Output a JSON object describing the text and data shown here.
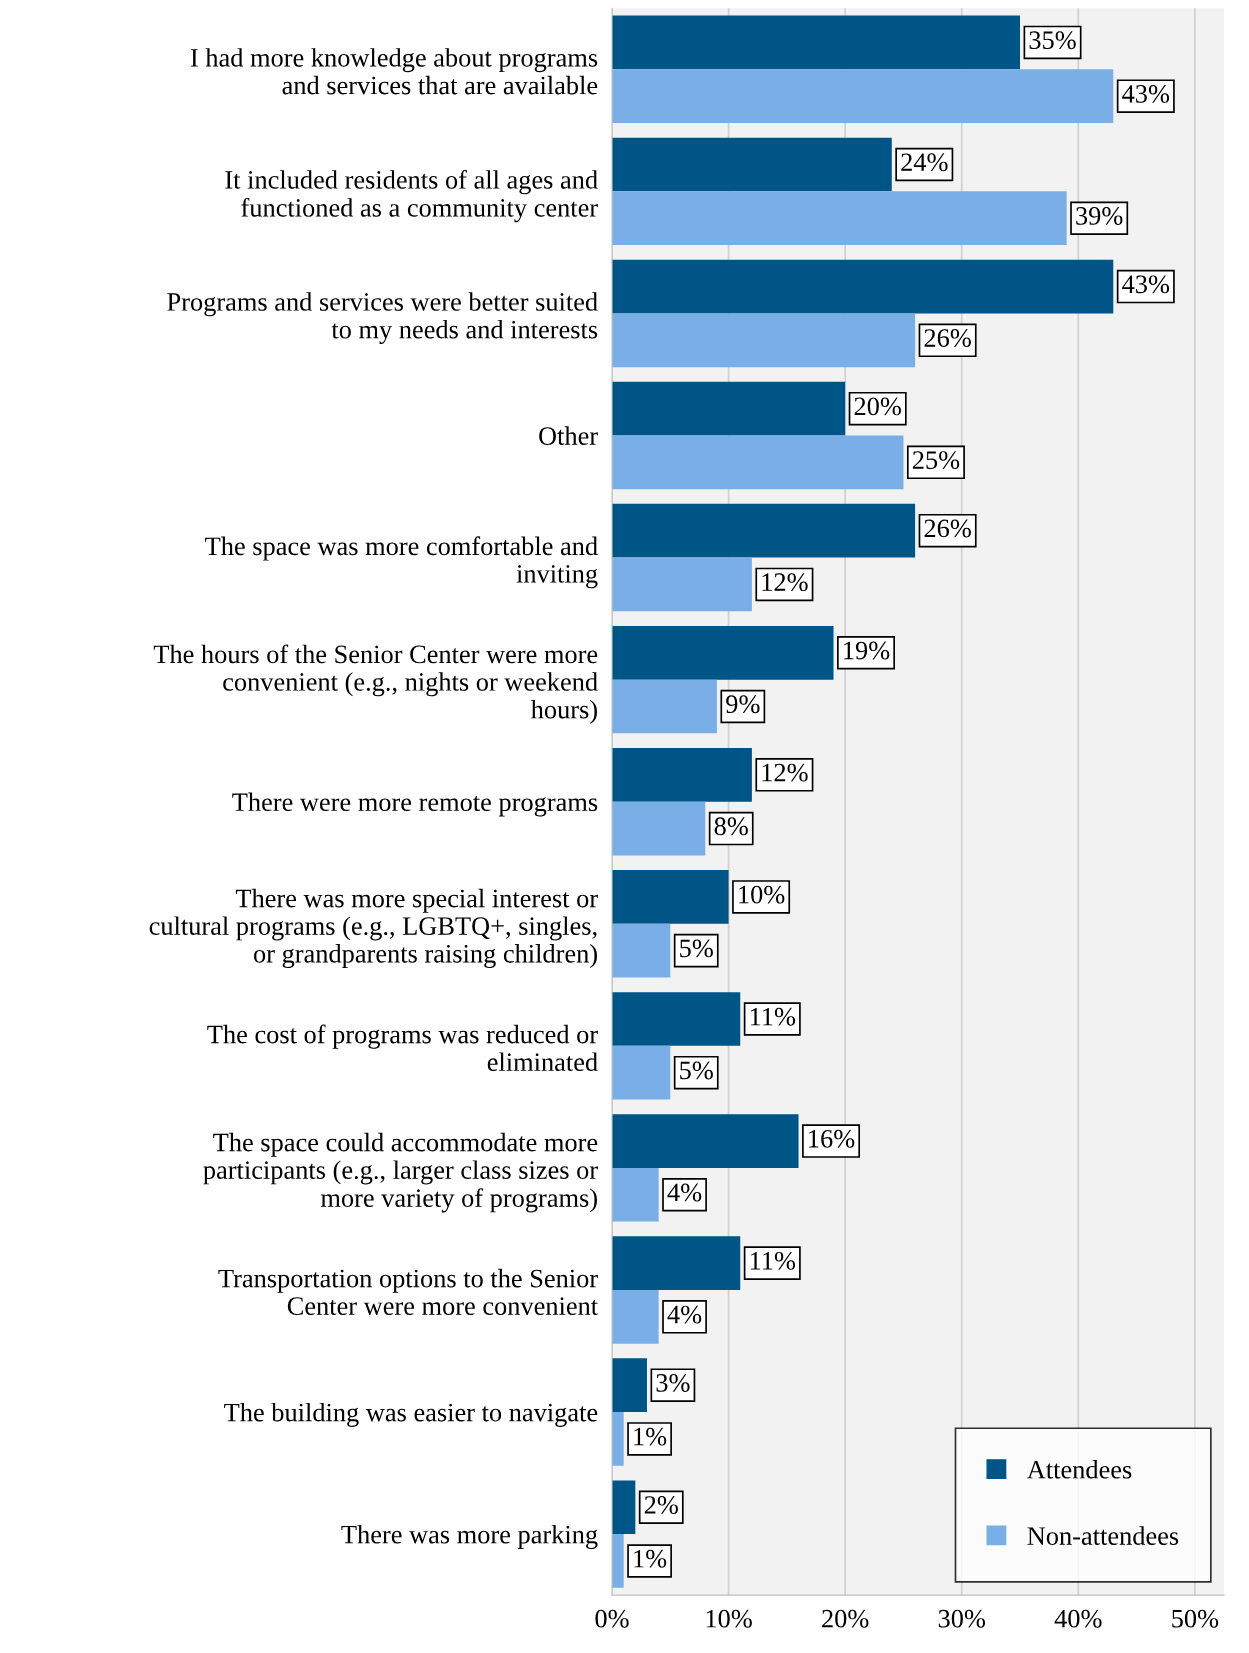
{
  "chart_data": {
    "type": "bar",
    "orientation": "horizontal",
    "categories": [
      "I had more knowledge about programs\nand services that are available",
      "It included residents of all ages and\nfunctioned as a community center",
      "Programs and services were better suited\nto my needs and interests",
      "Other",
      "The space was more comfortable and\ninviting",
      "The hours of the Senior Center were more\nconvenient (e.g., nights or weekend\nhours)",
      "There were more remote programs",
      "There was more special interest or\ncultural programs (e.g., LGBTQ+, singles,\nor grandparents raising children)",
      "The cost of programs was reduced or\neliminated",
      "The space could accommodate more\nparticipants (e.g., larger class sizes or\nmore variety of programs)",
      "Transportation options to the Senior\nCenter were more convenient",
      "The building was easier to navigate",
      "There was more parking"
    ],
    "series": [
      {
        "name": "Attendees",
        "color": "#005587",
        "values": [
          35,
          24,
          43,
          20,
          26,
          19,
          12,
          10,
          11,
          16,
          11,
          3,
          2
        ],
        "value_labels": [
          "35%",
          "24%",
          "43%",
          "20%",
          "26%",
          "19%",
          "12%",
          "10%",
          "11%",
          "16%",
          "11%",
          "3%",
          "2%"
        ]
      },
      {
        "name": "Non-attendees",
        "color": "#7aaee6",
        "values": [
          43,
          39,
          26,
          25,
          12,
          9,
          8,
          5,
          5,
          4,
          4,
          1,
          1
        ],
        "value_labels": [
          "43%",
          "39%",
          "26%",
          "25%",
          "12%",
          "9%",
          "8%",
          "5%",
          "5%",
          "4%",
          "4%",
          "1%",
          "1%"
        ]
      }
    ],
    "xlim": [
      0,
      52.5
    ],
    "xticks": [
      {
        "value": 0,
        "label": "0%"
      },
      {
        "value": 10,
        "label": "10%"
      },
      {
        "value": 20,
        "label": "20%"
      },
      {
        "value": 30,
        "label": "30%"
      },
      {
        "value": 40,
        "label": "40%"
      },
      {
        "value": 50,
        "label": "50%"
      }
    ],
    "grid": "x",
    "legend": "bottom right"
  }
}
